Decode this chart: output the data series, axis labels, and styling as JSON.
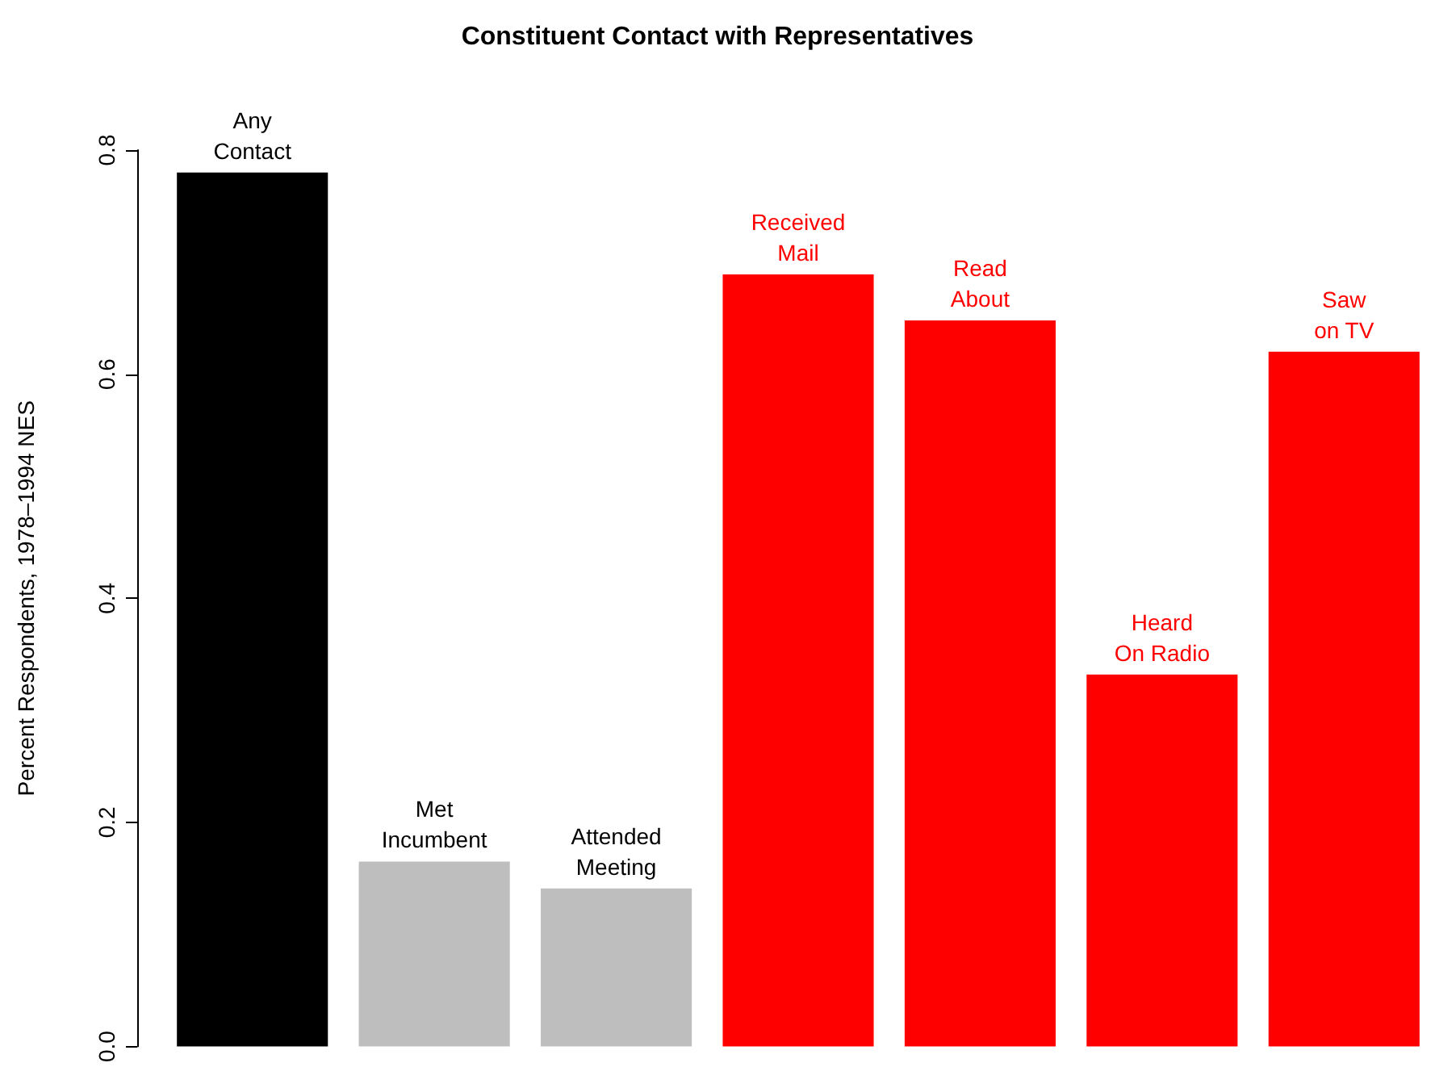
{
  "chart_data": {
    "type": "bar",
    "title": "Constituent Contact with Representatives",
    "ylabel": "Percent Respondents, 1978–1994 NES",
    "categories": [
      "Any\nContact",
      "Met\nIncumbent",
      "Attended\nMeeting",
      "Received\nMail",
      "Read\nAbout",
      "Heard\nOn Radio",
      "Saw\non TV"
    ],
    "values": [
      0.78,
      0.165,
      0.141,
      0.689,
      0.648,
      0.332,
      0.62
    ],
    "colors": [
      "#000000",
      "#bebebe",
      "#bebebe",
      "#ff0000",
      "#ff0000",
      "#ff0000",
      "#ff0000"
    ],
    "ylim": [
      0,
      0.8
    ],
    "yticks": [
      {
        "value": 0,
        "label": "0.0"
      },
      {
        "value": 0.2,
        "label": "0.2"
      },
      {
        "value": 0.4,
        "label": "0.4"
      },
      {
        "value": 0.6,
        "label": "0.6"
      },
      {
        "value": 0.8,
        "label": "0.8"
      }
    ],
    "grid": false
  }
}
